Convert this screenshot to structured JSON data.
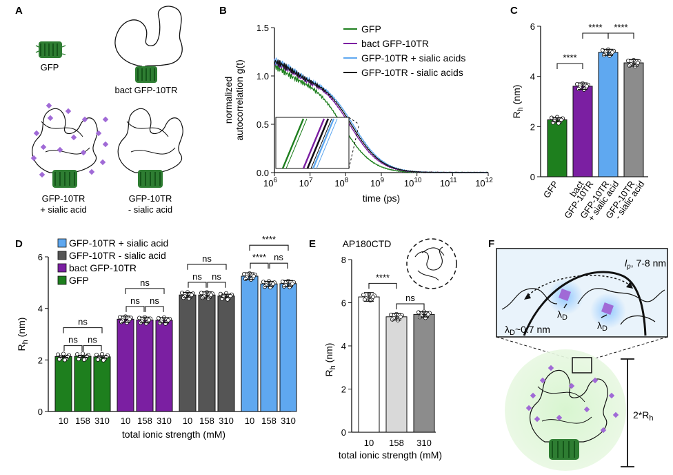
{
  "panels": {
    "A": "A",
    "B": "B",
    "C": "C",
    "D": "D",
    "E": "E",
    "F": "F"
  },
  "colors": {
    "gfp": "#1e7f1e",
    "bact": "#7b1fa2",
    "plus_sialic": "#5fa8f0",
    "minus_sialic": "#555555",
    "black": "#111111",
    "sialic_dot": "#a06ad6",
    "white_bar": "#ffffff",
    "light_bar": "#d9d9d9",
    "mid_bar": "#8c8c8c"
  },
  "panelA": {
    "labels": {
      "gfp": "GFP",
      "bact": "bact GFP-10TR",
      "plus1": "GFP-10TR",
      "plus2": "+ sialic acid",
      "minus1": "GFP-10TR",
      "minus2": "- sialic acid"
    }
  },
  "panelF": {
    "lp_label": "l",
    "lp_sub": "p",
    "lp_value": ", 7-8 nm",
    "lambda_d": "λ",
    "lambda_sub": "D",
    "lambda_value": "~0.7 nm",
    "rh_label": "2*R",
    "rh_sub": "h"
  },
  "chart_data": [
    {
      "panel": "B",
      "type": "line",
      "ylabel_line1": "normalized",
      "ylabel_line2": "autocorrelation g(t)",
      "xlabel": "time (ps)",
      "xscale": "log",
      "xlim": [
        1000000,
        1000000000000
      ],
      "ylim": [
        0,
        1.5
      ],
      "xticks": [
        {
          "base": "10",
          "exp": "6"
        },
        {
          "base": "10",
          "exp": "7"
        },
        {
          "base": "10",
          "exp": "8"
        },
        {
          "base": "10",
          "exp": "9"
        },
        {
          "base": "10",
          "exp": "10"
        },
        {
          "base": "10",
          "exp": "11"
        },
        {
          "base": "10",
          "exp": "12"
        }
      ],
      "yticks": [
        "0.0",
        "0.5",
        "1.0",
        "1.5"
      ],
      "legend": [
        "GFP",
        "bact GFP-10TR",
        "GFP-10TR + sialic acids",
        "GFP-10TR - sialic acids"
      ],
      "series": [
        {
          "name": "GFP",
          "tau_d": 80000000
        },
        {
          "name": "bact GFP-10TR",
          "tau_d": 132000000
        },
        {
          "name": "GFP-10TR + sialic acids",
          "tau_d": 165000000
        },
        {
          "name": "GFP-10TR - sialic acids",
          "tau_d": 148000000
        }
      ]
    },
    {
      "panel": "C",
      "type": "bar",
      "ylabel": "R",
      "ylabel_sub": "h",
      "ylabel_unit": " (nm)",
      "ylim": [
        0,
        6
      ],
      "yticks": [
        "0",
        "2",
        "4",
        "6"
      ],
      "categories": [
        "GFP",
        "bact GFP-10TR",
        "GFP-10TR + sialic acid",
        "GFP-10TR - sialic acid"
      ],
      "category_lines": [
        [
          "GFP"
        ],
        [
          "bact",
          "GFP-10TR"
        ],
        [
          "GFP-10TR",
          "+ sialic acid"
        ],
        [
          "GFP-10TR",
          "- sialic acid"
        ]
      ],
      "values": [
        2.27,
        3.61,
        4.96,
        4.54
      ],
      "errors": [
        0.08,
        0.13,
        0.12,
        0.13
      ],
      "significance": [
        {
          "from": 0,
          "to": 1,
          "label": "****"
        },
        {
          "from": 1,
          "to": 2,
          "label": "****"
        },
        {
          "from": 2,
          "to": 3,
          "label": "****"
        }
      ]
    },
    {
      "panel": "D",
      "type": "bar",
      "ylabel": "R",
      "ylabel_sub": "h",
      "ylabel_unit": " (nm)",
      "xlabel": "total ionic strength (mM)",
      "ylim": [
        0,
        6
      ],
      "yticks": [
        "0",
        "2",
        "4",
        "6"
      ],
      "legend": [
        "GFP-10TR + sialic acid",
        "GFP-10TR - sialic acid",
        "bact GFP-10TR",
        "GFP"
      ],
      "groups": [
        {
          "name": "GFP",
          "categories": [
            "10",
            "158",
            "310"
          ],
          "values": [
            2.13,
            2.14,
            2.12
          ],
          "errors": [
            0.03,
            0.04,
            0.04
          ]
        },
        {
          "name": "bact GFP-10TR",
          "categories": [
            "10",
            "158",
            "310"
          ],
          "values": [
            3.58,
            3.55,
            3.54
          ],
          "errors": [
            0.12,
            0.11,
            0.1
          ]
        },
        {
          "name": "GFP-10TR - sialic acid",
          "categories": [
            "10",
            "158",
            "310"
          ],
          "values": [
            4.52,
            4.52,
            4.48
          ],
          "errors": [
            0.1,
            0.12,
            0.07
          ]
        },
        {
          "name": "GFP-10TR + sialic acid",
          "categories": [
            "10",
            "158",
            "310"
          ],
          "values": [
            5.25,
            4.95,
            4.96
          ],
          "errors": [
            0.13,
            0.1,
            0.12
          ]
        }
      ],
      "significance": [
        {
          "group": 0,
          "pairs": [
            [
              0,
              1,
              "ns"
            ],
            [
              1,
              2,
              "ns"
            ],
            [
              0,
              2,
              "ns"
            ]
          ]
        },
        {
          "group": 1,
          "pairs": [
            [
              0,
              1,
              "ns"
            ],
            [
              1,
              2,
              "ns"
            ],
            [
              0,
              2,
              "ns"
            ]
          ]
        },
        {
          "group": 2,
          "pairs": [
            [
              0,
              1,
              "ns"
            ],
            [
              1,
              2,
              "ns"
            ],
            [
              0,
              2,
              "ns"
            ]
          ]
        },
        {
          "group": 3,
          "pairs": [
            [
              0,
              1,
              "****"
            ],
            [
              1,
              2,
              "ns"
            ],
            [
              0,
              2,
              "****"
            ]
          ]
        }
      ]
    },
    {
      "panel": "E",
      "type": "bar",
      "title": "AP180CTD",
      "ylabel": "R",
      "ylabel_sub": "h",
      "ylabel_unit": " (nm)",
      "xlabel": "total ionic strength (mM)",
      "ylim": [
        0,
        8
      ],
      "yticks": [
        "0",
        "2",
        "4",
        "6",
        "8"
      ],
      "categories": [
        "10",
        "158",
        "310"
      ],
      "values": [
        6.27,
        5.35,
        5.46
      ],
      "errors": [
        0.2,
        0.15,
        0.12
      ],
      "significance": [
        {
          "from": 0,
          "to": 1,
          "label": "****"
        },
        {
          "from": 1,
          "to": 2,
          "label": "ns"
        }
      ]
    }
  ]
}
